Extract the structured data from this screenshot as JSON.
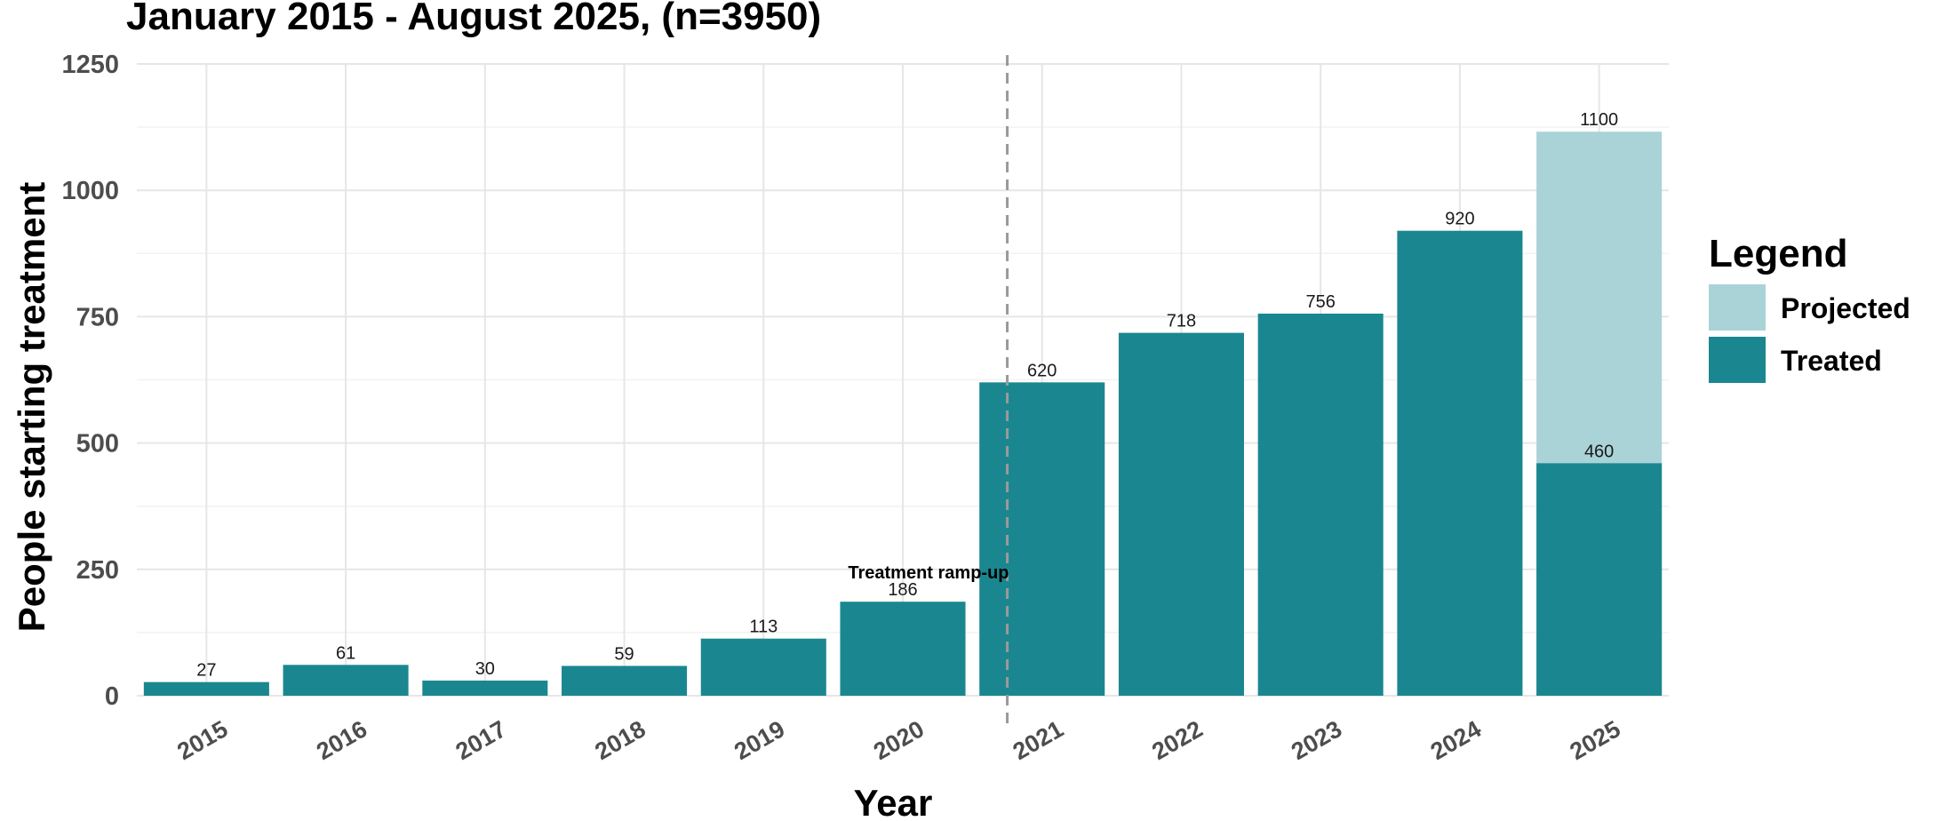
{
  "chart_data": {
    "type": "bar",
    "title": "January 2015 - August 2025, (n=3950)",
    "xlabel": "Year",
    "ylabel": "People starting treatment",
    "ylim": [
      0,
      1250
    ],
    "yticks": [
      0,
      250,
      500,
      750,
      1000,
      1250
    ],
    "grid": true,
    "categories": [
      "2015",
      "2016",
      "2017",
      "2018",
      "2019",
      "2020",
      "2021",
      "2022",
      "2023",
      "2024",
      "2025"
    ],
    "series": [
      {
        "name": "Treated",
        "color": "#1a8790",
        "values": [
          27,
          61,
          30,
          59,
          113,
          186,
          620,
          718,
          756,
          920,
          460
        ],
        "labels": [
          "27",
          "61",
          "30",
          "59",
          "113",
          "186",
          "620",
          "718",
          "756",
          "920",
          "460"
        ]
      },
      {
        "name": "Projected",
        "color": "#aad3d8",
        "values": [
          null,
          null,
          null,
          null,
          null,
          null,
          null,
          null,
          null,
          null,
          1116
        ],
        "labels": [
          "",
          "",
          "",
          "",
          "",
          "",
          "",
          "",
          "",
          "",
          "1100"
        ]
      }
    ],
    "reference_line": {
      "style": "dashed",
      "color": "#9a9a9a",
      "x_between": [
        "2020",
        "2021"
      ],
      "position": 0.75
    },
    "annotation": {
      "text": "Treatment ramp-up"
    },
    "legend": {
      "title": "Legend",
      "placement": "right",
      "entries": [
        {
          "label": "Projected",
          "color": "#aad3d8"
        },
        {
          "label": "Treated",
          "color": "#1a8790"
        }
      ]
    }
  }
}
